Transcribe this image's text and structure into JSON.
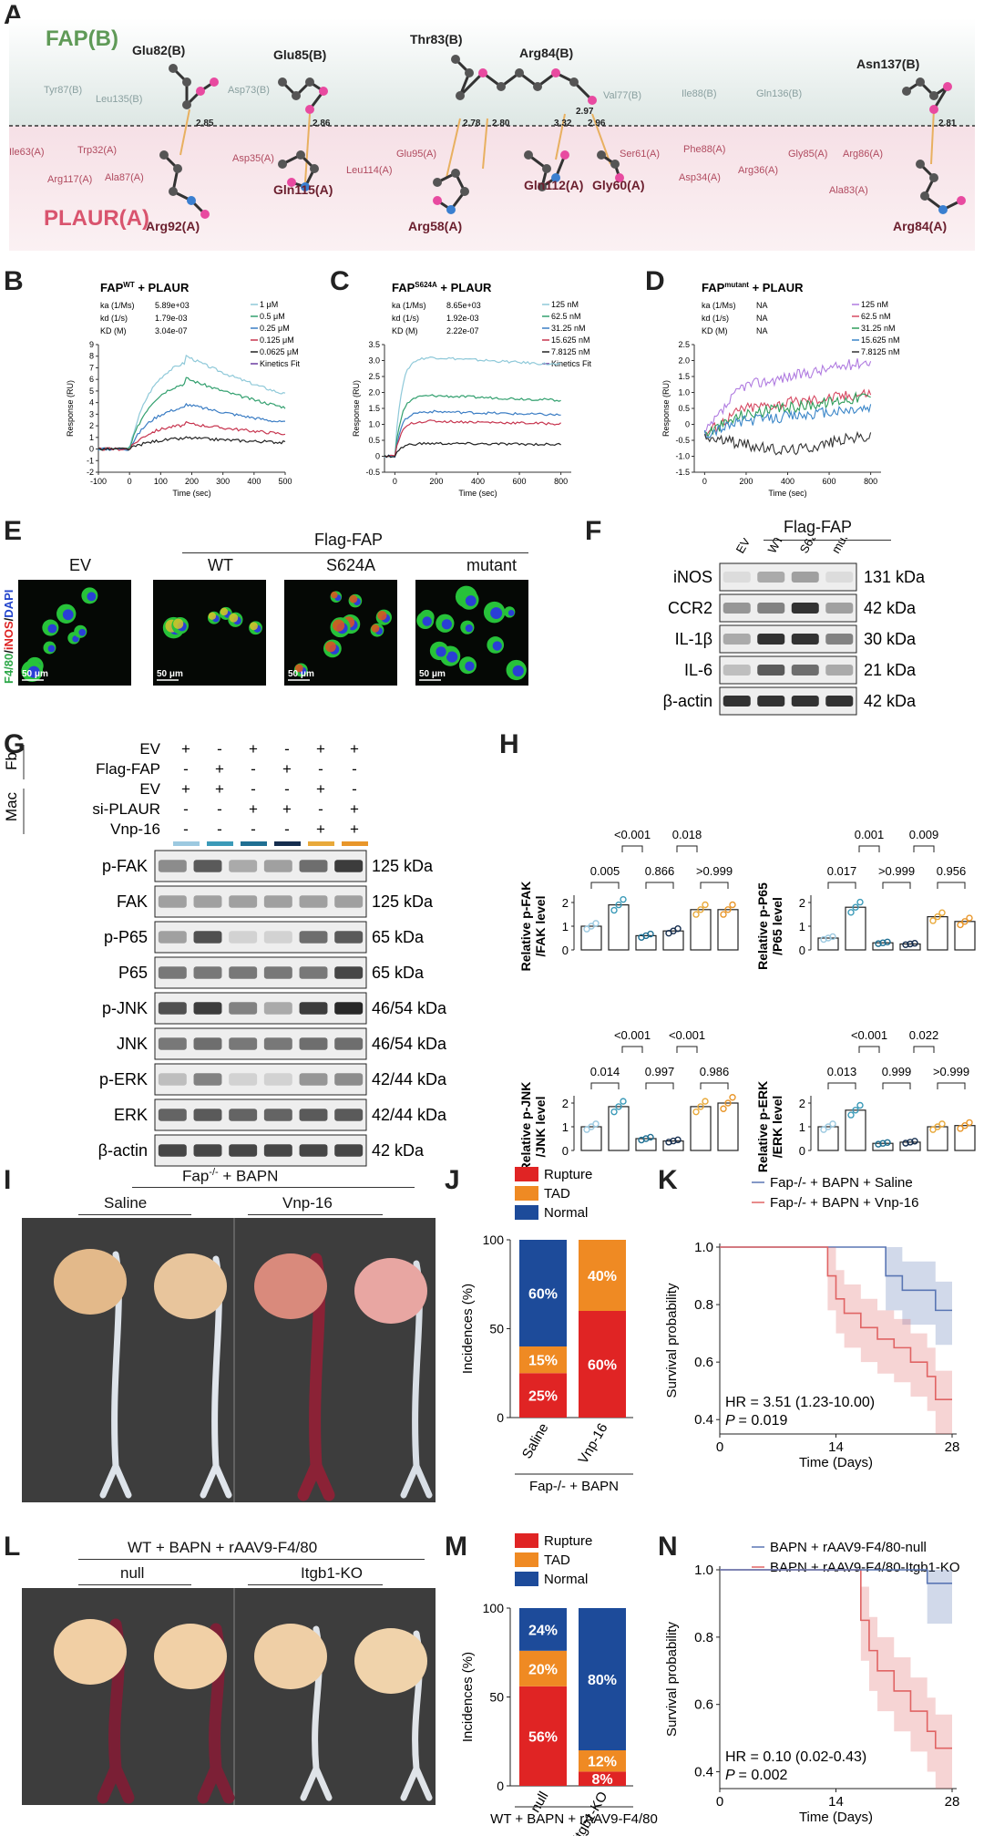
{
  "panel_letters": [
    "A",
    "B",
    "C",
    "D",
    "E",
    "F",
    "G",
    "H",
    "I",
    "J",
    "K",
    "L",
    "M",
    "N"
  ],
  "panel_a": {
    "fap_label": "FAP(B)",
    "plaur_label": "PLAUR(A)",
    "fap_residues": [
      "Glu82(B)",
      "Glu85(B)",
      "Thr83(B)",
      "Arg84(B)",
      "Asn137(B)"
    ],
    "plaur_residues": [
      "Arg92(A)",
      "Gln115(A)",
      "Arg58(A)",
      "Gln112(A)",
      "Gly60(A)",
      "Arg84(A)"
    ],
    "faint_fap": [
      "Tyr87(B)",
      "Leu135(B)",
      "Asp73(B)",
      "Val77(B)",
      "Ile88(B)",
      "Gln136(B)"
    ],
    "faint_plaur": [
      "Ile63(A)",
      "Trp32(A)",
      "Arg117(A)",
      "Ala87(A)",
      "Asp35(A)",
      "Leu114(A)",
      "Glu95(A)",
      "Ser61(A)",
      "Phe88(A)",
      "Asp34(A)",
      "Arg36(A)",
      "Gly85(A)",
      "Arg86(A)",
      "Ala83(A)"
    ],
    "distances": [
      "2.85",
      "2.86",
      "2.78",
      "2.80",
      "3.32",
      "2.97",
      "2.96",
      "2.81"
    ]
  },
  "spr": [
    {
      "title_pre": "FAP",
      "title_sup": "WT",
      "title_post": " + PLAUR",
      "params": [
        [
          "ka (1/Ms)",
          "5.89e+03"
        ],
        [
          "kd (1/s)",
          "1.79e-03"
        ],
        [
          "KD (M)",
          "3.04e-07"
        ]
      ],
      "legend": [
        "1 μM",
        "0.5 μM",
        "0.25 μM",
        "0.125 μM",
        "0.0625 μM",
        "Kinetics Fit"
      ],
      "xlabel": "Time (sec)",
      "ylabel": "Response (RU)",
      "xticks": [
        "-100",
        "0",
        "100",
        "200",
        "300",
        "400",
        "500"
      ],
      "yticks": [
        "-2",
        "-1",
        "0",
        "1",
        "2",
        "3",
        "4",
        "5",
        "6",
        "7",
        "8",
        "9"
      ]
    },
    {
      "title_pre": "FAP",
      "title_sup": "S624A",
      "title_post": " + PLAUR",
      "params": [
        [
          "ka (1/Ms)",
          "8.65e+03"
        ],
        [
          "kd (1/s)",
          "1.92e-03"
        ],
        [
          "KD (M)",
          "2.22e-07"
        ]
      ],
      "legend": [
        "125 nM",
        "62.5 nM",
        "31.25 nM",
        "15.625 nM",
        "7.8125 nM",
        "Kinetics Fit"
      ],
      "xlabel": "Time (sec)",
      "ylabel": "Response (RU)",
      "xticks": [
        "0",
        "200",
        "400",
        "600",
        "800"
      ],
      "yticks": [
        "-0.5",
        "0",
        "0.5",
        "1.0",
        "1.5",
        "2.0",
        "2.5",
        "3.0",
        "3.5"
      ]
    },
    {
      "title_pre": "FAP",
      "title_sup": "mutant",
      "title_post": " + PLAUR",
      "params": [
        [
          "ka (1/Ms)",
          "NA"
        ],
        [
          "kd (1/s)",
          "NA"
        ],
        [
          "KD (M)",
          "NA"
        ]
      ],
      "legend": [
        "125 nM",
        "62.5 nM",
        "31.25 nM",
        "15.625 nM",
        "7.8125 nM"
      ],
      "xlabel": "Time (sec)",
      "ylabel": "Response (RU)",
      "xticks": [
        "0",
        "200",
        "400",
        "600",
        "800"
      ],
      "yticks": [
        "-1.5",
        "-1.0",
        "-0.5",
        "0",
        "0.5",
        "1.0",
        "1.5",
        "2.0",
        "2.5"
      ]
    }
  ],
  "panel_e": {
    "flag": "Flag-FAP",
    "groups": [
      "EV",
      "WT",
      "S624A",
      "mutant"
    ],
    "stain": [
      "F4/80",
      "/",
      "iNOS",
      "/",
      "DAPI"
    ],
    "scale": "50 μm"
  },
  "panel_f": {
    "flag": "Flag-FAP",
    "lanes": [
      "EV",
      "WT",
      "S624A",
      "mutant"
    ],
    "bands": [
      [
        "iNOS",
        "131 kDa"
      ],
      [
        "CCR2",
        "42 kDa"
      ],
      [
        "IL-1β",
        "30 kDa"
      ],
      [
        "IL-6",
        "21 kDa"
      ],
      [
        "β-actin",
        "42 kDa"
      ]
    ]
  },
  "panel_g": {
    "side": [
      "Fb",
      "Mac"
    ],
    "rows": [
      [
        "EV",
        "+",
        "-",
        "+",
        "-",
        "+",
        "+"
      ],
      [
        "Flag-FAP",
        "-",
        "+",
        "-",
        "+",
        "-",
        "-"
      ],
      [
        "EV",
        "+",
        "+",
        "-",
        "-",
        "+",
        "-"
      ],
      [
        "si-PLAUR",
        "-",
        "-",
        "+",
        "+",
        "-",
        "+"
      ],
      [
        "Vnp-16",
        "-",
        "-",
        "-",
        "-",
        "+",
        "+"
      ]
    ],
    "bands": [
      [
        "p-FAK",
        "125 kDa"
      ],
      [
        "FAK",
        "125 kDa"
      ],
      [
        "p-P65",
        "65 kDa"
      ],
      [
        "P65",
        "65 kDa"
      ],
      [
        "p-JNK",
        "46/54 kDa"
      ],
      [
        "JNK",
        "46/54 kDa"
      ],
      [
        "p-ERK",
        "42/44 kDa"
      ],
      [
        "ERK",
        "42/44 kDa"
      ],
      [
        "β-actin",
        "42 kDa"
      ]
    ],
    "lane_colors": [
      "#9cc9e0",
      "#3b9ab8",
      "#1f6f92",
      "#152d4e",
      "#e8a93a",
      "#e8962a"
    ]
  },
  "chart_data": [
    {
      "type": "bar",
      "ylabel": "Relative p-FAK\n/FAK level",
      "values": [
        1.0,
        1.9,
        0.6,
        0.8,
        1.7,
        1.7
      ],
      "ylim": [
        0,
        2
      ],
      "yticks": [
        "0",
        "1",
        "2"
      ],
      "pvalues_top": [
        "<0.001",
        "0.018"
      ],
      "pvalues_low": [
        "0.005",
        "0.866",
        ">0.999"
      ]
    },
    {
      "type": "bar",
      "ylabel": "Relative p-P65\n/P65 level",
      "values": [
        0.5,
        1.8,
        0.3,
        0.25,
        1.4,
        1.2
      ],
      "ylim": [
        0,
        2
      ],
      "yticks": [
        "0",
        "1",
        "2"
      ],
      "pvalues_top": [
        "0.001",
        "0.009"
      ],
      "pvalues_low": [
        "0.017",
        ">0.999",
        "0.956"
      ]
    },
    {
      "type": "bar",
      "ylabel": "Relative p-JNK\n/JNK level",
      "values": [
        1.0,
        1.85,
        0.5,
        0.4,
        1.85,
        2.0
      ],
      "ylim": [
        0,
        2
      ],
      "yticks": [
        "0",
        "1",
        "2"
      ],
      "pvalues_top": [
        "<0.001",
        "<0.001"
      ],
      "pvalues_low": [
        "0.014",
        "0.997",
        "0.986"
      ]
    },
    {
      "type": "bar",
      "ylabel": "Relative p-ERK\n/ERK level",
      "values": [
        1.0,
        1.7,
        0.3,
        0.35,
        1.0,
        1.05
      ],
      "ylim": [
        0,
        2
      ],
      "yticks": [
        "0",
        "1",
        "2"
      ],
      "pvalues_top": [
        "<0.001",
        "0.022"
      ],
      "pvalues_low": [
        "0.013",
        "0.999",
        ">0.999"
      ]
    },
    {
      "type": "bar",
      "title": "",
      "ylabel": "Incidences (%)",
      "categories": [
        "Saline",
        "Vnp-16"
      ],
      "ylim": [
        0,
        100
      ],
      "yticks": [
        "0",
        "50",
        "100"
      ],
      "series": [
        {
          "name": "Rupture",
          "values": [
            25,
            60
          ]
        },
        {
          "name": "TAD",
          "values": [
            15,
            40
          ]
        },
        {
          "name": "Normal",
          "values": [
            60,
            0
          ]
        }
      ],
      "labels": [
        [
          "25%",
          "15%",
          "60%"
        ],
        [
          "60%",
          "40%",
          ""
        ]
      ],
      "xgroup": "Fap-/- + BAPN"
    },
    {
      "type": "line",
      "ylabel": "Survival probability",
      "xlabel": "Time (Days)",
      "xticks": [
        "0",
        "14",
        "28"
      ],
      "yticks": [
        "0.4",
        "0.6",
        "0.8",
        "1.0"
      ],
      "series": [
        {
          "name": "Fap-/- + BAPN + Saline",
          "x": [
            0,
            20,
            20,
            22,
            22,
            26,
            26,
            28
          ],
          "y": [
            1.0,
            1.0,
            0.9,
            0.9,
            0.85,
            0.85,
            0.78,
            0.78
          ]
        },
        {
          "name": "Fap-/- + BAPN + Vnp-16",
          "x": [
            0,
            13,
            13,
            14,
            14,
            15,
            15,
            17,
            17,
            19,
            19,
            21,
            21,
            23,
            23,
            25,
            25,
            26,
            26,
            28
          ],
          "y": [
            1.0,
            1.0,
            0.9,
            0.9,
            0.82,
            0.82,
            0.77,
            0.77,
            0.72,
            0.72,
            0.68,
            0.68,
            0.65,
            0.65,
            0.6,
            0.6,
            0.55,
            0.55,
            0.47,
            0.47
          ]
        }
      ],
      "hr": "HR = 3.51 (1.23-10.00)",
      "p": "= 0.019"
    },
    {
      "type": "bar",
      "ylabel": "Incidences (%)",
      "categories": [
        "null",
        "Itgb1-KO"
      ],
      "ylim": [
        0,
        100
      ],
      "yticks": [
        "0",
        "50",
        "100"
      ],
      "series": [
        {
          "name": "Rupture",
          "values": [
            56,
            8
          ]
        },
        {
          "name": "TAD",
          "values": [
            20,
            12
          ]
        },
        {
          "name": "Normal",
          "values": [
            24,
            80
          ]
        }
      ],
      "labels": [
        [
          "56%",
          "20%",
          "24%"
        ],
        [
          "8%",
          "12%",
          "80%"
        ]
      ],
      "xgroup": "WT + BAPN + rAAV9-F4/80"
    },
    {
      "type": "line",
      "ylabel": "Survival probability",
      "xlabel": "Time (Days)",
      "xticks": [
        "0",
        "14",
        "28"
      ],
      "yticks": [
        "0.4",
        "0.6",
        "0.8",
        "1.0"
      ],
      "series": [
        {
          "name": "BAPN + rAAV9-F4/80-null",
          "x": [
            0,
            17,
            17,
            18,
            18,
            19,
            19,
            21,
            21,
            23,
            23,
            25,
            25,
            26,
            26,
            28
          ],
          "y": [
            1.0,
            1.0,
            0.85,
            0.85,
            0.76,
            0.76,
            0.7,
            0.7,
            0.64,
            0.64,
            0.58,
            0.58,
            0.52,
            0.52,
            0.47,
            0.47
          ]
        },
        {
          "name": "BAPN + rAAV9-F4/80-Itgb1-KO",
          "x": [
            0,
            25,
            25,
            28
          ],
          "y": [
            1.0,
            1.0,
            0.96,
            0.96
          ]
        }
      ],
      "hr": "HR = 0.10 (0.02-0.43)",
      "p": "= 0.002"
    }
  ],
  "panel_i": {
    "title_pre": "Fap",
    "title_sup": "-/-",
    "title_post": " + BAPN",
    "groups": [
      "Saline",
      "Vnp-16"
    ]
  },
  "panel_l": {
    "title": "WT + BAPN + rAAV9-F4/80",
    "groups": [
      "null",
      "Itgb1-KO"
    ]
  },
  "legend_j": [
    "Rupture",
    "TAD",
    "Normal"
  ],
  "legend_k": [
    "Fap-/- + BAPN + Saline",
    "Fap-/- + BAPN + Vnp-16"
  ],
  "colors": {
    "rupture": "#e02424",
    "tad": "#ef8a23",
    "normal": "#1d4b9a",
    "salmon": "#e06464",
    "navy": "#5a76b4"
  }
}
